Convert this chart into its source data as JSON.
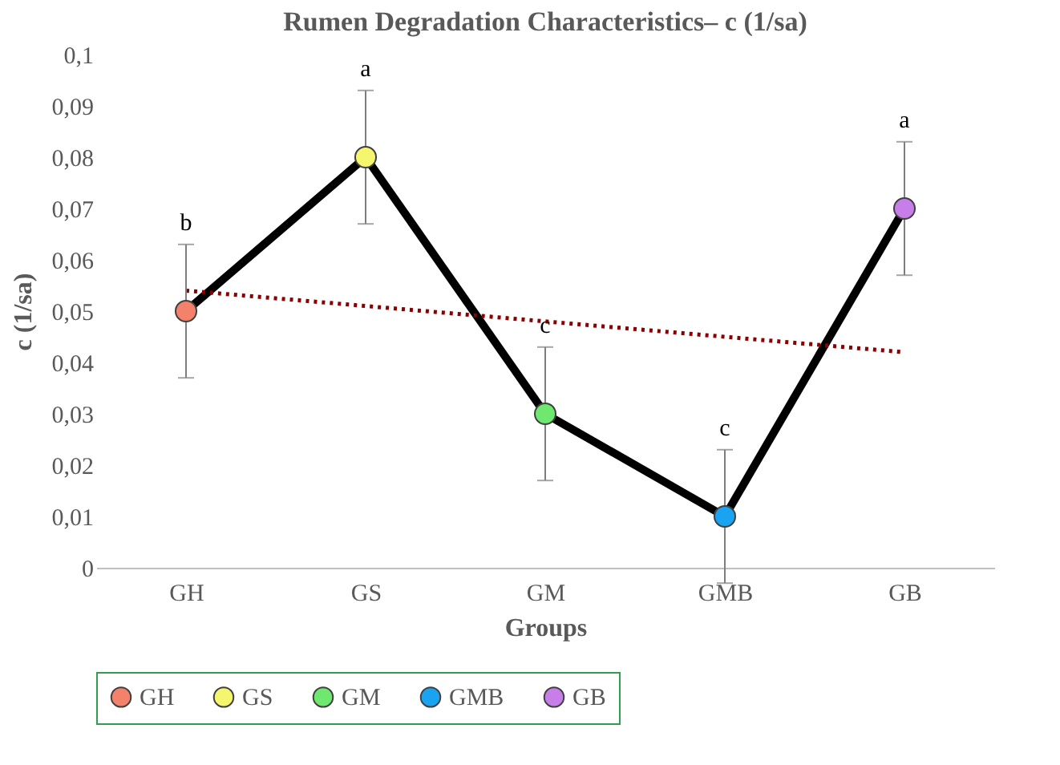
{
  "chart_data": {
    "type": "scatter",
    "title": "Rumen Degradation Characteristics–  c (1/sa)",
    "xlabel": "Groups",
    "ylabel": "c (1/sa)",
    "categories": [
      "GH",
      "GS",
      "GM",
      "GMB",
      "GB"
    ],
    "series": [
      {
        "type": "line",
        "color": "#000000",
        "values": [
          0.05,
          0.08,
          0.03,
          0.01,
          0.07
        ],
        "marker": "none",
        "line_style": "solid"
      },
      {
        "type": "line",
        "color": "#8b0000",
        "x": [
          "GH",
          "GB"
        ],
        "values": [
          0.054,
          0.042
        ],
        "marker": "none",
        "line_style": "dotted"
      },
      {
        "name": "GH",
        "color": "#f4826a",
        "x": [
          "GH"
        ],
        "values": [
          0.05
        ],
        "errors": [
          0.013
        ],
        "marker": "circle"
      },
      {
        "name": "GS",
        "color": "#f5f56e",
        "x": [
          "GS"
        ],
        "values": [
          0.08
        ],
        "errors": [
          0.013
        ],
        "marker": "circle"
      },
      {
        "name": "GM",
        "color": "#6ee86e",
        "x": [
          "GM"
        ],
        "values": [
          0.03
        ],
        "errors": [
          0.013
        ],
        "marker": "circle"
      },
      {
        "name": "GMB",
        "color": "#1aa3f0",
        "x": [
          "GMB"
        ],
        "values": [
          0.01
        ],
        "errors": [
          0.013
        ],
        "marker": "circle"
      },
      {
        "name": "GB",
        "color": "#c77ee8",
        "x": [
          "GB"
        ],
        "values": [
          0.07
        ],
        "errors": [
          0.013
        ],
        "marker": "circle"
      }
    ],
    "ylim": [
      0,
      0.1
    ],
    "yticks": [
      {
        "value": 0,
        "label": "0"
      },
      {
        "value": 0.01,
        "label": "0,01"
      },
      {
        "value": 0.02,
        "label": "0,02"
      },
      {
        "value": 0.03,
        "label": "0,03"
      },
      {
        "value": 0.04,
        "label": "0,04"
      },
      {
        "value": 0.05,
        "label": "0,05"
      },
      {
        "value": 0.06,
        "label": "0,06"
      },
      {
        "value": 0.07,
        "label": "0,07"
      },
      {
        "value": 0.08,
        "label": "0,08"
      },
      {
        "value": 0.09,
        "label": "0,09"
      },
      {
        "value": 0.1,
        "label": "0,1"
      }
    ],
    "annotations": [
      "b",
      "a",
      "c",
      "c",
      "a"
    ],
    "grid": false,
    "legend": "bottom"
  }
}
